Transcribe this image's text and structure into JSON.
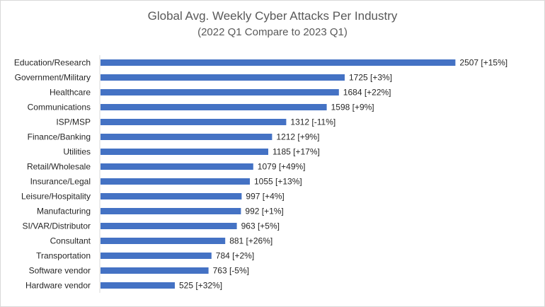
{
  "chart_data": {
    "type": "bar",
    "orientation": "horizontal",
    "title": "Global Avg. Weekly Cyber Attacks Per Industry",
    "subtitle": "(2022 Q1 Compare to 2023 Q1)",
    "xlim": [
      0,
      2600
    ],
    "grid": false,
    "bar_color": "#4472c4",
    "categories": [
      "Education/Research",
      "Government/Military",
      "Healthcare",
      "Communications",
      "ISP/MSP",
      "Finance/Banking",
      "Utilities",
      "Retail/Wholesale",
      "Insurance/Legal",
      "Leisure/Hospitality",
      "Manufacturing",
      "SI/VAR/Distributor",
      "Consultant",
      "Transportation",
      "Software vendor",
      "Hardware vendor"
    ],
    "values": [
      2507,
      1725,
      1684,
      1598,
      1312,
      1212,
      1185,
      1079,
      1055,
      997,
      992,
      963,
      881,
      784,
      763,
      525
    ],
    "data_labels": [
      "2507 [+15%]",
      "1725 [+3%]",
      "1684 [+22%]",
      "1598 [+9%]",
      "1312 [-11%]",
      "1212 [+9%]",
      "1185 [+17%]",
      "1079 [+49%]",
      "1055 [+13%]",
      "997 [+4%]",
      "992 [+1%]",
      "963 [+5%]",
      "881 [+26%]",
      "784 [+2%]",
      "763 [-5%]",
      "525 [+32%]"
    ]
  }
}
